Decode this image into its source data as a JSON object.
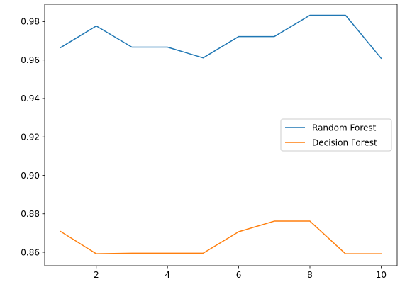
{
  "chart_data": {
    "type": "line",
    "title": "",
    "xlabel": "",
    "ylabel": "",
    "x": [
      1,
      2,
      3,
      4,
      5,
      6,
      7,
      8,
      9,
      10
    ],
    "xlim": [
      0.55,
      10.45
    ],
    "ylim": [
      0.853,
      0.989
    ],
    "xticks": [
      2,
      4,
      6,
      8,
      10
    ],
    "yticks": [
      0.86,
      0.88,
      0.9,
      0.92,
      0.94,
      0.96,
      0.98
    ],
    "grid": false,
    "legend_position": "center-right",
    "series": [
      {
        "name": "Random Forest",
        "color": "#1f77b4",
        "values": [
          0.9665,
          0.9777,
          0.9667,
          0.9667,
          0.9611,
          0.9722,
          0.9722,
          0.9833,
          0.9833,
          0.9609
        ]
      },
      {
        "name": "Decision Forest",
        "color": "#ff7f0e",
        "values": [
          0.8708,
          0.8592,
          0.8595,
          0.8595,
          0.8595,
          0.8707,
          0.8762,
          0.8762,
          0.8592,
          0.8592
        ]
      }
    ]
  }
}
